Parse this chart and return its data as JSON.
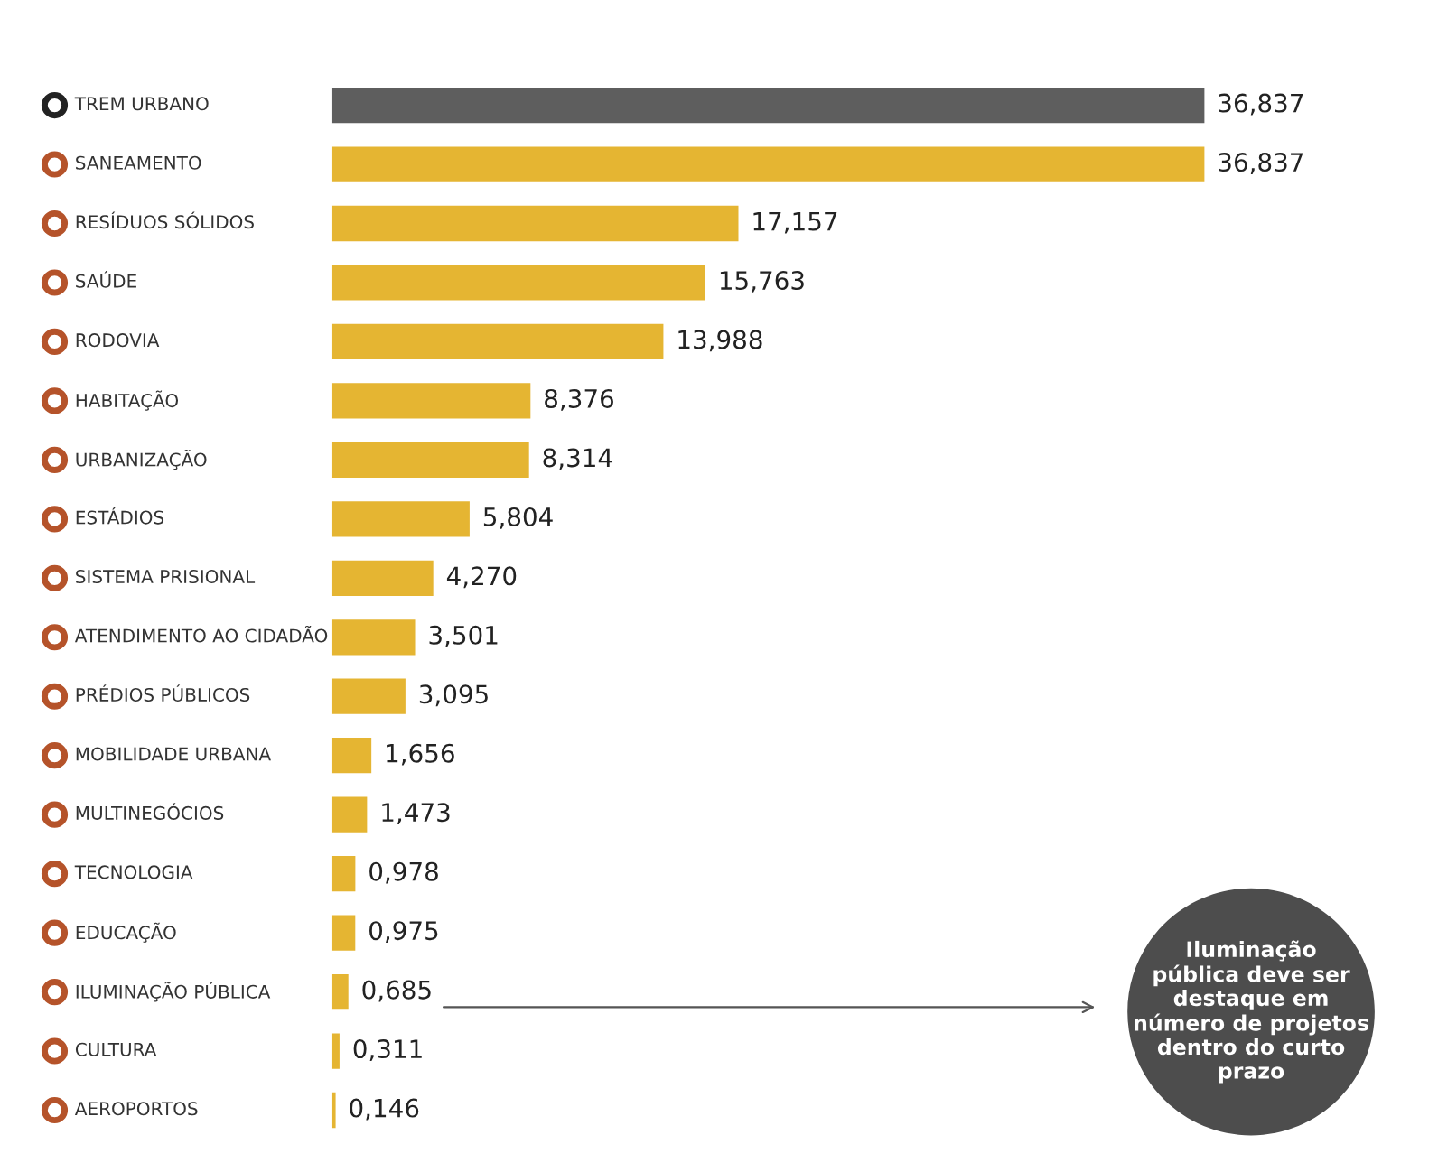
{
  "chart_data": {
    "type": "bar",
    "orientation": "horizontal",
    "categories": [
      "TREM URBANO",
      "SANEAMENTO",
      "RESÍDUOS SÓLIDOS",
      "SAÚDE",
      "RODOVIA",
      "HABITAÇÃO",
      "URBANIZAÇÃO",
      "ESTÁDIOS",
      "SISTEMA PRISIONAL",
      "ATENDIMENTO AO CIDADÃO",
      "PRÉDIOS PÚBLICOS",
      "MOBILIDADE URBANA",
      "MULTINEGÓCIOS",
      "TECNOLOGIA",
      "EDUCAÇÃO",
      "ILUMINAÇÃO PÚBLICA",
      "CULTURA",
      "AEROPORTOS"
    ],
    "values": [
      36.837,
      36.837,
      17.157,
      15.763,
      13.988,
      8.376,
      8.314,
      5.804,
      4.27,
      3.501,
      3.095,
      1.656,
      1.473,
      0.978,
      0.975,
      0.685,
      0.311,
      0.146
    ],
    "value_labels": [
      "36,837",
      "36,837",
      "17,157",
      "15,763",
      "13,988",
      "8,376",
      "8,314",
      "5,804",
      "4,270",
      "3,501",
      "3,095",
      "1,656",
      "1,473",
      "0,978",
      "0,975",
      "0,685",
      "0,311",
      "0,146"
    ],
    "colors": [
      "#5e5e5e",
      "#e5b532",
      "#e5b532",
      "#e5b532",
      "#e5b532",
      "#e5b532",
      "#e5b532",
      "#e5b532",
      "#e5b532",
      "#e5b532",
      "#e5b532",
      "#e5b532",
      "#e5b532",
      "#e5b532",
      "#e5b532",
      "#e5b532",
      "#e5b532",
      "#e5b532"
    ],
    "annotations": [
      "Iluminação\npública deve ser\ndestaque em\nnúmero de projetos\ndentro do curto\nprazo"
    ],
    "legend": false
  }
}
